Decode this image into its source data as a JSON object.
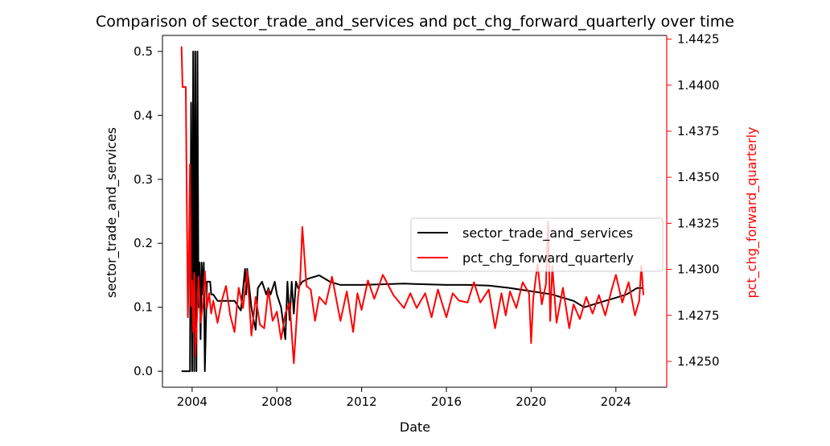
{
  "chart_data": {
    "type": "line",
    "title": "Comparison of sector_trade_and_services and pct_chg_forward_quarterly over time",
    "xlabel": "Date",
    "ylabel_left": "sector_trade_and_services",
    "ylabel_right": "pct_chg_forward_quarterly",
    "xlim": [
      2002.6,
      2026.4
    ],
    "ylim_left": [
      -0.025,
      0.525
    ],
    "ylim_right": [
      1.4236,
      1.4427
    ],
    "x_ticks": [
      2004,
      2008,
      2012,
      2016,
      2020,
      2024
    ],
    "x_tick_labels": [
      "2004",
      "2008",
      "2012",
      "2016",
      "2020",
      "2024"
    ],
    "y_left_ticks": [
      0.0,
      0.1,
      0.2,
      0.3,
      0.4,
      0.5
    ],
    "y_left_tick_labels": [
      "0.0",
      "0.1",
      "0.2",
      "0.3",
      "0.4",
      "0.5"
    ],
    "y_right_ticks": [
      1.425,
      1.4275,
      1.43,
      1.4325,
      1.435,
      1.4375,
      1.44,
      1.4425
    ],
    "y_right_tick_labels": [
      "1.4250",
      "1.4275",
      "1.4300",
      "1.4325",
      "1.4350",
      "1.4375",
      "1.4400",
      "1.4425"
    ],
    "grid": false,
    "legend_position": "center-right",
    "colors": {
      "left_axis": "#000000",
      "right_axis": "#ff0000"
    },
    "series": [
      {
        "name": "sector_trade_and_services",
        "axis": "left",
        "color": "#000000",
        "x": [
          2003.5,
          2003.9,
          2003.95,
          2004.0,
          2004.05,
          2004.1,
          2004.15,
          2004.2,
          2004.25,
          2004.3,
          2004.35,
          2004.4,
          2004.45,
          2004.5,
          2004.55,
          2004.6,
          2004.7,
          2004.75,
          2004.85,
          2004.9,
          2005.0,
          2005.2,
          2005.5,
          2005.8,
          2006.0,
          2006.3,
          2006.5,
          2006.55,
          2006.6,
          2006.8,
          2006.9,
          2007.0,
          2007.1,
          2007.3,
          2007.5,
          2007.6,
          2007.7,
          2007.9,
          2008.0,
          2008.2,
          2008.4,
          2008.5,
          2008.6,
          2008.7,
          2008.8,
          2008.9,
          2009.0,
          2009.2,
          2009.5,
          2010.0,
          2010.5,
          2011.0,
          2012.0,
          2013.0,
          2014.0,
          2015.0,
          2016.0,
          2017.0,
          2018.0,
          2019.0,
          2020.0,
          2021.0,
          2021.5,
          2022.0,
          2022.5,
          2023.0,
          2023.5,
          2024.0,
          2024.5,
          2025.0,
          2025.3
        ],
        "values": [
          0.0,
          0.0,
          0.42,
          0.0,
          0.5,
          0.0,
          0.5,
          0.0,
          0.5,
          0.1,
          0.17,
          0.05,
          0.17,
          0.12,
          0.17,
          0.0,
          0.14,
          0.14,
          0.14,
          0.12,
          0.12,
          0.11,
          0.11,
          0.11,
          0.11,
          0.095,
          0.16,
          0.12,
          0.16,
          0.1,
          0.08,
          0.065,
          0.13,
          0.14,
          0.12,
          0.13,
          0.12,
          0.14,
          0.12,
          0.1,
          0.05,
          0.14,
          0.08,
          0.14,
          0.09,
          0.14,
          0.13,
          0.14,
          0.145,
          0.15,
          0.14,
          0.135,
          0.135,
          0.136,
          0.137,
          0.136,
          0.135,
          0.135,
          0.134,
          0.13,
          0.125,
          0.12,
          0.115,
          0.11,
          0.1,
          0.105,
          0.11,
          0.115,
          0.12,
          0.13,
          0.13
        ]
      },
      {
        "name": "pct_chg_forward_quarterly",
        "axis": "right",
        "color": "#ff0000",
        "x": [
          2003.5,
          2003.55,
          2003.7,
          2003.75,
          2003.8,
          2003.85,
          2003.9,
          2003.95,
          2004.0,
          2004.05,
          2004.1,
          2004.15,
          2004.2,
          2004.3,
          2004.4,
          2004.5,
          2004.6,
          2004.7,
          2004.8,
          2004.9,
          2005.0,
          2005.2,
          2005.4,
          2005.6,
          2005.8,
          2006.0,
          2006.2,
          2006.4,
          2006.6,
          2006.8,
          2007.0,
          2007.2,
          2007.4,
          2007.6,
          2007.8,
          2008.0,
          2008.2,
          2008.4,
          2008.6,
          2008.8,
          2009.0,
          2009.1,
          2009.2,
          2009.4,
          2009.6,
          2009.8,
          2010.0,
          2010.3,
          2010.6,
          2011.0,
          2011.3,
          2011.6,
          2011.8,
          2012.0,
          2012.3,
          2012.6,
          2013.0,
          2013.5,
          2014.0,
          2014.3,
          2014.6,
          2015.0,
          2015.3,
          2015.6,
          2016.0,
          2016.3,
          2016.6,
          2017.0,
          2017.3,
          2017.6,
          2018.0,
          2018.3,
          2018.6,
          2018.8,
          2019.0,
          2019.3,
          2019.6,
          2019.9,
          2020.0,
          2020.1,
          2020.3,
          2020.5,
          2020.7,
          2020.8,
          2020.9,
          2021.0,
          2021.2,
          2021.5,
          2021.8,
          2022.0,
          2022.3,
          2022.6,
          2022.9,
          2023.2,
          2023.5,
          2023.8,
          2024.0,
          2024.3,
          2024.6,
          2024.9,
          2025.1,
          2025.2,
          2025.3
        ],
        "values": [
          1.4421,
          1.4399,
          1.4399,
          1.4335,
          1.4274,
          1.4305,
          1.4357,
          1.428,
          1.4294,
          1.4266,
          1.4298,
          1.4253,
          1.4266,
          1.4296,
          1.4271,
          1.428,
          1.4299,
          1.4279,
          1.4287,
          1.4276,
          1.4283,
          1.4271,
          1.4283,
          1.4291,
          1.4275,
          1.4266,
          1.429,
          1.4279,
          1.4299,
          1.4264,
          1.4285,
          1.427,
          1.4268,
          1.4289,
          1.4272,
          1.4277,
          1.4262,
          1.4276,
          1.4282,
          1.4249,
          1.4285,
          1.4294,
          1.4323,
          1.4291,
          1.4289,
          1.4272,
          1.4285,
          1.4281,
          1.4296,
          1.4272,
          1.4288,
          1.4266,
          1.4287,
          1.4278,
          1.4294,
          1.4284,
          1.4297,
          1.4286,
          1.4279,
          1.4287,
          1.4279,
          1.4287,
          1.4274,
          1.4289,
          1.4274,
          1.4287,
          1.4283,
          1.4282,
          1.4293,
          1.4282,
          1.4289,
          1.4268,
          1.4287,
          1.4275,
          1.4288,
          1.4279,
          1.4293,
          1.4287,
          1.426,
          1.4284,
          1.4303,
          1.4281,
          1.4292,
          1.4326,
          1.4272,
          1.4302,
          1.4271,
          1.429,
          1.4268,
          1.4281,
          1.4273,
          1.4285,
          1.4276,
          1.4286,
          1.4275,
          1.4289,
          1.4297,
          1.4282,
          1.4293,
          1.4275,
          1.4283,
          1.4302,
          1.4286
        ]
      }
    ]
  }
}
